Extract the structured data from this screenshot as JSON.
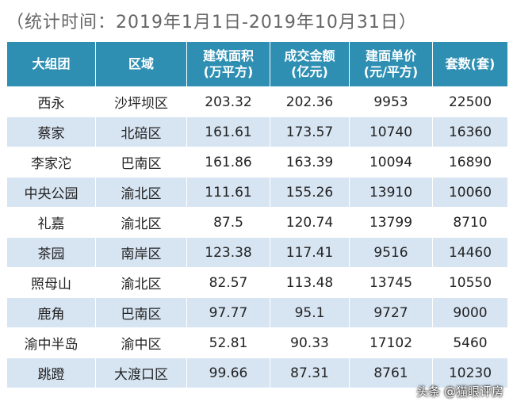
{
  "caption": "（统计时间：2019年1月1日-2019年10月31日）",
  "table": {
    "header": [
      [
        "大组团"
      ],
      [
        "区域"
      ],
      [
        "建筑面积",
        "(万平方)"
      ],
      [
        "成交金额",
        "(亿元)"
      ],
      [
        "建面单价",
        "(元/平方)"
      ],
      [
        "套数(套)"
      ]
    ],
    "rows": [
      [
        "西永",
        "沙坪坝区",
        "203.32",
        "202.36",
        "9953",
        "22500"
      ],
      [
        "蔡家",
        "北碚区",
        "161.61",
        "173.57",
        "10740",
        "16360"
      ],
      [
        "李家沱",
        "巴南区",
        "161.86",
        "163.39",
        "10094",
        "16890"
      ],
      [
        "中央公园",
        "渝北区",
        "111.61",
        "155.26",
        "13910",
        "10060"
      ],
      [
        "礼嘉",
        "渝北区",
        "87.5",
        "120.74",
        "13799",
        "8710"
      ],
      [
        "茶园",
        "南岸区",
        "123.38",
        "117.41",
        "9516",
        "14460"
      ],
      [
        "照母山",
        "渝北区",
        "82.57",
        "113.48",
        "13745",
        "10550"
      ],
      [
        "鹿角",
        "巴南区",
        "97.77",
        "95.1",
        "9727",
        "9000"
      ],
      [
        "渝中半岛",
        "渝中区",
        "52.81",
        "90.33",
        "17102",
        "5460"
      ],
      [
        "跳蹬",
        "大渡口区",
        "99.66",
        "87.31",
        "8761",
        "10230"
      ]
    ]
  },
  "watermark": "头条 @猫眼评房"
}
